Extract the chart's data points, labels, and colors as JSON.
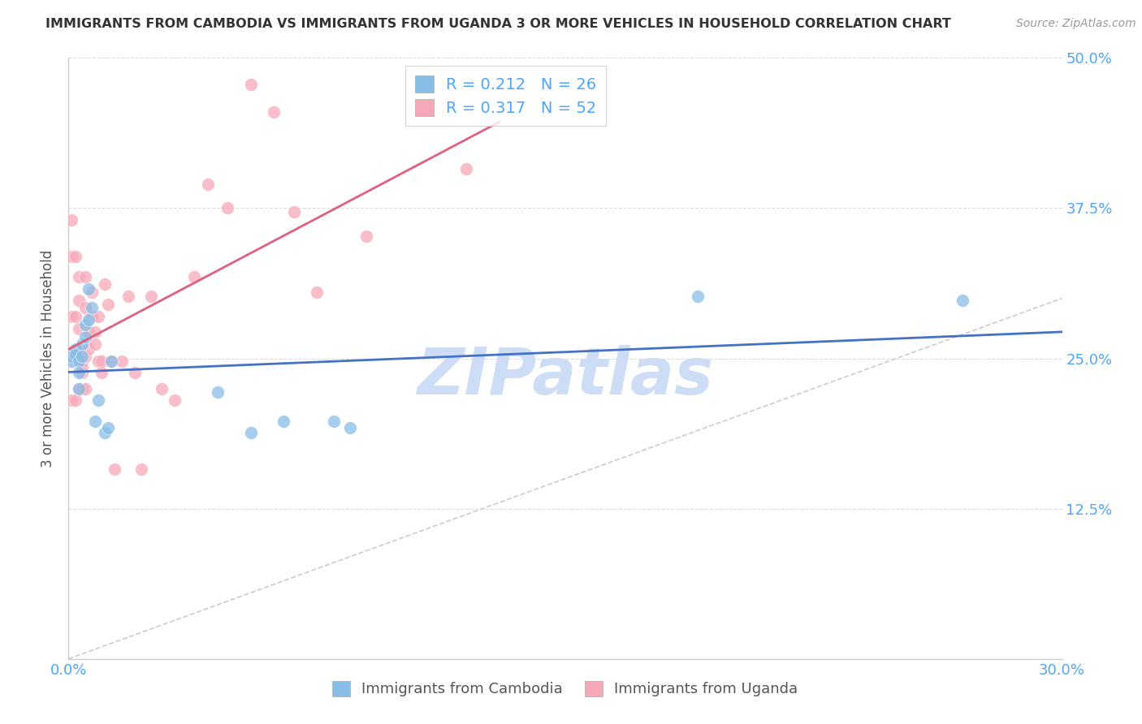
{
  "title": "IMMIGRANTS FROM CAMBODIA VS IMMIGRANTS FROM UGANDA 3 OR MORE VEHICLES IN HOUSEHOLD CORRELATION CHART",
  "source": "Source: ZipAtlas.com",
  "ylabel": "3 or more Vehicles in Household",
  "xlabel_Cambodia": "Immigrants from Cambodia",
  "xlabel_Uganda": "Immigrants from Uganda",
  "R_Cambodia": 0.212,
  "N_Cambodia": 26,
  "R_Uganda": 0.317,
  "N_Uganda": 52,
  "xlim": [
    0.0,
    0.3
  ],
  "ylim": [
    0.0,
    0.5
  ],
  "color_Cambodia": "#88bde6",
  "color_Uganda": "#f7a8b8",
  "color_regline_Cambodia": "#4472c4",
  "color_regline_Uganda": "#e06080",
  "color_diag": "#cccccc",
  "color_watermark": "#ccddf5",
  "color_axis_right": "#4da6ff",
  "Cambodia_x": [
    0.001,
    0.001,
    0.002,
    0.002,
    0.003,
    0.003,
    0.003,
    0.004,
    0.004,
    0.005,
    0.005,
    0.006,
    0.006,
    0.007,
    0.008,
    0.009,
    0.011,
    0.012,
    0.013,
    0.045,
    0.055,
    0.065,
    0.08,
    0.085,
    0.19,
    0.27
  ],
  "Cambodia_y": [
    0.248,
    0.252,
    0.258,
    0.253,
    0.248,
    0.238,
    0.225,
    0.262,
    0.252,
    0.268,
    0.278,
    0.282,
    0.308,
    0.292,
    0.198,
    0.215,
    0.188,
    0.192,
    0.248,
    0.222,
    0.188,
    0.198,
    0.198,
    0.192,
    0.302,
    0.298
  ],
  "Uganda_x": [
    0.001,
    0.001,
    0.001,
    0.001,
    0.001,
    0.002,
    0.002,
    0.002,
    0.002,
    0.003,
    0.003,
    0.003,
    0.003,
    0.003,
    0.004,
    0.004,
    0.004,
    0.004,
    0.005,
    0.005,
    0.005,
    0.005,
    0.006,
    0.006,
    0.007,
    0.007,
    0.008,
    0.008,
    0.009,
    0.009,
    0.01,
    0.01,
    0.011,
    0.012,
    0.013,
    0.014,
    0.016,
    0.018,
    0.02,
    0.022,
    0.025,
    0.028,
    0.032,
    0.038,
    0.042,
    0.048,
    0.055,
    0.062,
    0.068,
    0.075,
    0.09,
    0.12
  ],
  "Uganda_y": [
    0.365,
    0.335,
    0.285,
    0.255,
    0.215,
    0.335,
    0.285,
    0.248,
    0.215,
    0.318,
    0.298,
    0.275,
    0.255,
    0.225,
    0.248,
    0.242,
    0.238,
    0.225,
    0.318,
    0.292,
    0.252,
    0.225,
    0.272,
    0.258,
    0.305,
    0.285,
    0.272,
    0.262,
    0.285,
    0.248,
    0.248,
    0.238,
    0.312,
    0.295,
    0.248,
    0.158,
    0.248,
    0.302,
    0.238,
    0.158,
    0.302,
    0.225,
    0.215,
    0.318,
    0.395,
    0.375,
    0.478,
    0.455,
    0.372,
    0.305,
    0.352,
    0.408
  ]
}
